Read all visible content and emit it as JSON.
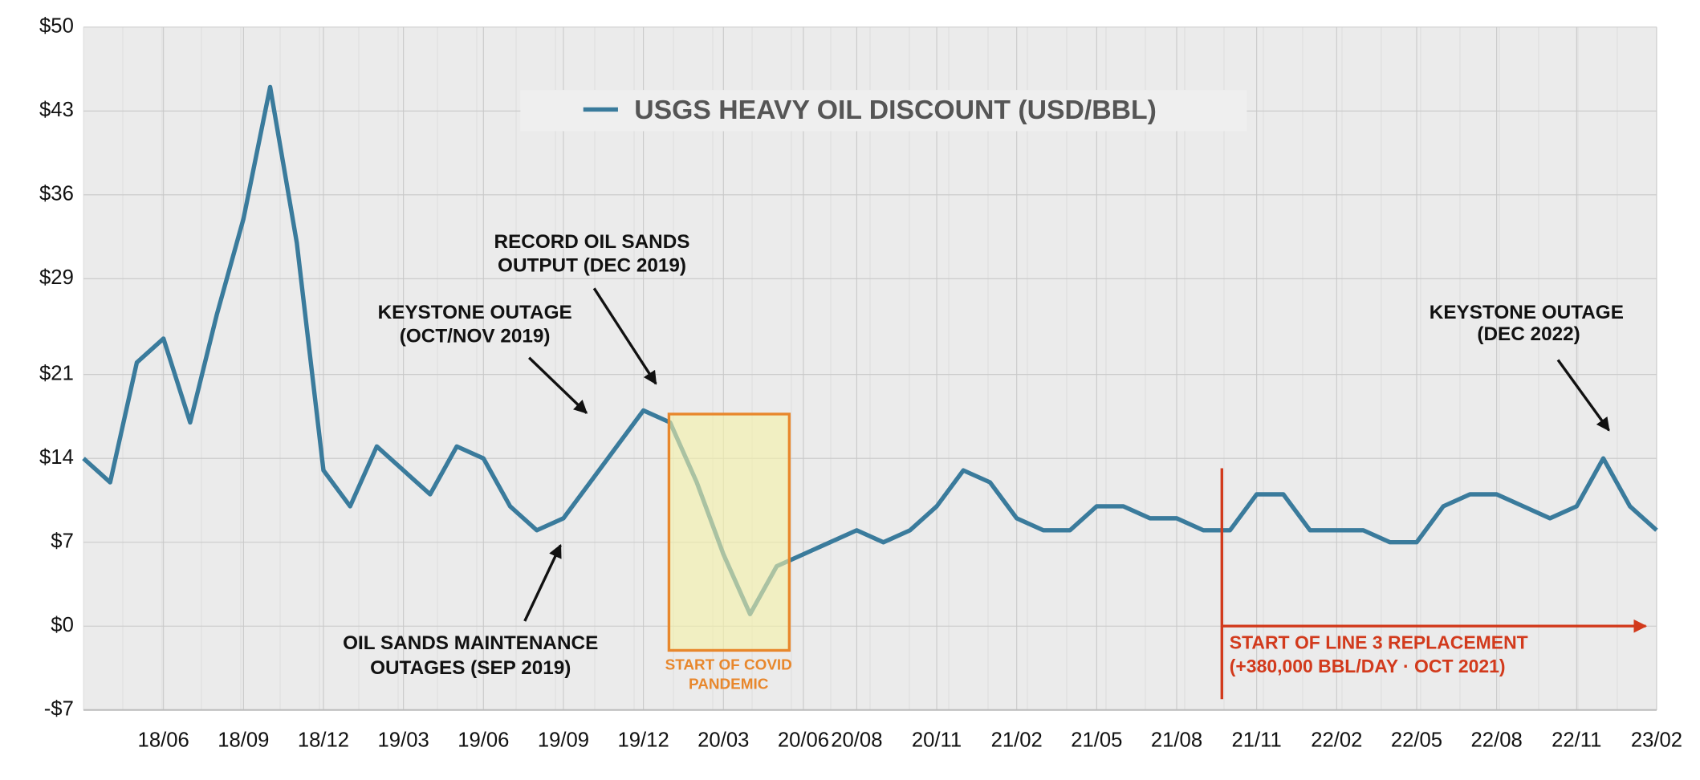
{
  "chart_data": {
    "type": "line",
    "x": [
      "18/03",
      "18/04",
      "18/05",
      "18/06",
      "18/07",
      "18/08",
      "18/09",
      "18/10",
      "18/11",
      "18/12",
      "19/01",
      "19/02",
      "19/03",
      "19/04",
      "19/05",
      "19/06",
      "19/07",
      "19/08",
      "19/09",
      "19/10",
      "19/11",
      "19/12",
      "20/01",
      "20/02",
      "20/03",
      "20/04",
      "20/05",
      "20/06",
      "20/07",
      "20/08",
      "20/09",
      "20/10",
      "20/11",
      "20/12",
      "21/01",
      "21/02",
      "21/03",
      "21/04",
      "21/05",
      "21/06",
      "21/07",
      "21/08",
      "21/09",
      "21/10",
      "21/11",
      "21/12",
      "22/01",
      "22/02",
      "22/03",
      "22/04",
      "22/05",
      "22/06",
      "22/07",
      "22/08",
      "22/09",
      "22/10",
      "22/11",
      "22/12",
      "23/01",
      "23/02"
    ],
    "series": [
      {
        "name": "USGS HEAVY OIL DISCOUNT (USD/BBL)",
        "color": "#3a7b9c",
        "values": [
          14,
          12,
          22,
          24,
          17,
          26,
          34,
          45,
          32,
          13,
          10,
          15,
          13,
          11,
          15,
          14,
          10,
          8,
          9,
          12,
          15,
          18,
          17,
          12,
          6,
          1,
          5,
          6,
          7,
          8,
          7,
          8,
          10,
          13,
          12,
          9,
          8,
          8,
          10,
          10,
          9,
          9,
          8,
          8,
          11,
          11,
          8,
          8,
          8,
          7,
          7,
          10,
          11,
          11,
          10,
          9,
          10,
          14,
          10,
          8
        ]
      }
    ],
    "ylim": [
      -7,
      50
    ],
    "yticks": [
      {
        "value": -7,
        "label": "-$7"
      },
      {
        "value": 0,
        "label": "$0"
      },
      {
        "value": 7,
        "label": "$7"
      },
      {
        "value": 14,
        "label": "$14"
      },
      {
        "value": 21,
        "label": "$21"
      },
      {
        "value": 29,
        "label": "$29"
      },
      {
        "value": 36,
        "label": "$36"
      },
      {
        "value": 43,
        "label": "$43"
      },
      {
        "value": 50,
        "label": "$50"
      }
    ],
    "xticks": [
      "18/06",
      "18/09",
      "18/12",
      "19/03",
      "19/06",
      "19/09",
      "19/12",
      "20/03",
      "20/06",
      "20/08",
      "20/11",
      "21/02",
      "21/05",
      "21/08",
      "21/11",
      "22/02",
      "22/05",
      "22/08",
      "22/11",
      "23/02"
    ],
    "grid": true,
    "annotations": [
      {
        "lines": [
          "RECORD OIL SANDS",
          "OUTPUT (DEC 2019)"
        ]
      },
      {
        "lines": [
          "KEYSTONE OUTAGE",
          "(OCT/NOV 2019)"
        ]
      },
      {
        "lines": [
          "OIL SANDS MAINTENANCE",
          "OUTAGES (SEP 2019)"
        ]
      },
      {
        "lines": [
          "KEYSTONE OUTAGE",
          "(DEC 2022)"
        ]
      },
      {
        "lines": [
          "START OF COVID",
          "PANDEMIC"
        ]
      },
      {
        "lines": [
          "START OF LINE 3 REPLACEMENT",
          "(+380,000 BBL/DAY · OCT 2021)"
        ]
      }
    ]
  }
}
